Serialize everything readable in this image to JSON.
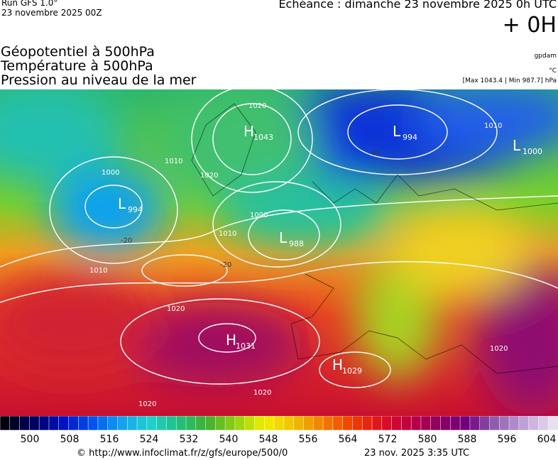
{
  "header": {
    "run": "Run GFS 1.0°",
    "date": "23 novembre 2025 00Z",
    "echeance": "Echéance : dimanche 23 novembre 2025 0h UTC",
    "step": "+ 0H",
    "layers": [
      "Géopotentiel à 500hPa",
      "Température à 500hPa",
      "Pression au niveau de la mer"
    ],
    "units": [
      "gpdam",
      "°C",
      "[Max 1043.4 | Min 987.7] hPa"
    ]
  },
  "map": {
    "centers": [
      {
        "letter": "H",
        "value": "1043"
      },
      {
        "letter": "L",
        "value": "994"
      },
      {
        "letter": "L",
        "value": "1000"
      },
      {
        "letter": "L",
        "value": "994"
      },
      {
        "letter": "L",
        "value": "988"
      },
      {
        "letter": "H",
        "value": "1031"
      },
      {
        "letter": "H",
        "value": "1029"
      }
    ],
    "isobar_labels": [
      "1020",
      "1010",
      "1000",
      "1010",
      "1020",
      "1000",
      "1010",
      "1010",
      "1020",
      "1020",
      "1020",
      "1020"
    ],
    "temperature_labels": [
      "-20",
      "-40",
      "-20"
    ]
  },
  "scale": {
    "labels": [
      500,
      508,
      516,
      524,
      532,
      540,
      548,
      556,
      564,
      572,
      580,
      588,
      596,
      604
    ]
  },
  "footer": {
    "source": "© http://www.infoclimat.fr/z/gfs/europe/500/0",
    "generated": "23 nov. 2025  3:35 UTC"
  }
}
